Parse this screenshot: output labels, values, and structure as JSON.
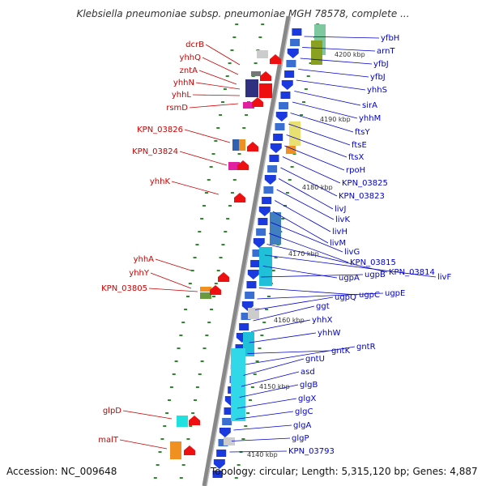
{
  "title": "Klebsiella pneumoniae subsp. pneumoniae MGH 78578, complete ...",
  "footer": {
    "accession": "Accession: NC_009648",
    "summary": "Topology: circular; Length: 5,315,120 bp; Genes: 4,887"
  },
  "colors": {
    "left_label": "#cc0000",
    "right_label": "#0000cc",
    "backbone": "#888888",
    "tick": "#2a8a2a"
  },
  "left_labels": [
    "dcrB",
    "yhhQ",
    "zntA",
    "yhhN",
    "yhhL",
    "rsmD",
    "KPN_03826",
    "KPN_03824",
    "yhhK",
    "yhhA",
    "yhhY",
    "KPN_03805",
    "glpD",
    "malT"
  ],
  "right_labels": [
    "yfbH",
    "arnT",
    "yfbJ",
    "yfbJ",
    "yhhS",
    "sirA",
    "yhhM",
    "ftsY",
    "ftsE",
    "ftsX",
    "rpoH",
    "KPN_03825",
    "KPN_03823",
    "livJ",
    "livK",
    "livH",
    "livM",
    "livG",
    "KPN_03815",
    "KPN_03814",
    "livF",
    "ugpA",
    "ugpB",
    "ugpC",
    "ugpE",
    "ugpQ",
    "ggt",
    "yhhX",
    "yhhW",
    "gntK",
    "gntR",
    "gntU",
    "asd",
    "glgB",
    "glgX",
    "glgC",
    "glgA",
    "glgP",
    "KPN_03793"
  ],
  "scale_labels": [
    "4200 kbp",
    "4190 kbp",
    "4180 kbp",
    "4170 kbp",
    "4160 kbp",
    "4150 kbp",
    "4140 kbp"
  ]
}
